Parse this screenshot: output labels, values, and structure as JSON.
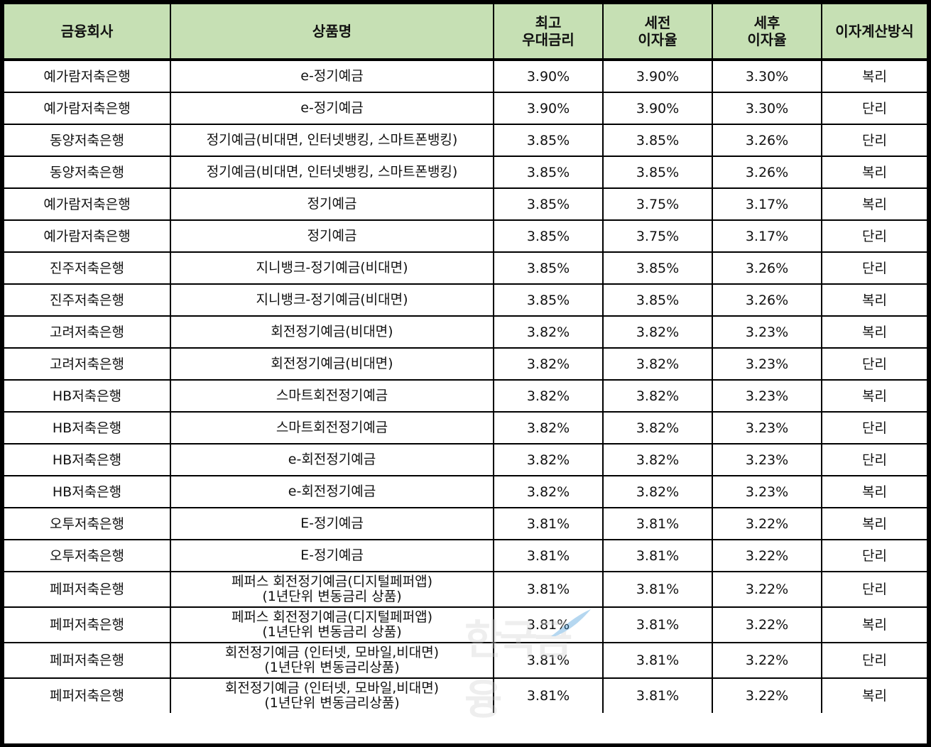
{
  "table": {
    "headers": [
      {
        "lines": [
          "금융회사"
        ]
      },
      {
        "lines": [
          "상품명"
        ]
      },
      {
        "lines": [
          "최고",
          "우대금리"
        ]
      },
      {
        "lines": [
          "세전",
          "이자율"
        ]
      },
      {
        "lines": [
          "세후",
          "이자율"
        ]
      },
      {
        "lines": [
          "이자계산방식"
        ]
      }
    ],
    "rows": [
      {
        "company": "예가람저축은행",
        "product": [
          "e-정기예금"
        ],
        "max_preferential_rate": "3.90%",
        "pre_tax_rate": "3.90%",
        "after_tax_rate": "3.30%",
        "interest_method": "복리"
      },
      {
        "company": "예가람저축은행",
        "product": [
          "e-정기예금"
        ],
        "max_preferential_rate": "3.90%",
        "pre_tax_rate": "3.90%",
        "after_tax_rate": "3.30%",
        "interest_method": "단리"
      },
      {
        "company": "동양저축은행",
        "product": [
          "정기예금(비대면, 인터넷뱅킹, 스마트폰뱅킹)"
        ],
        "max_preferential_rate": "3.85%",
        "pre_tax_rate": "3.85%",
        "after_tax_rate": "3.26%",
        "interest_method": "단리"
      },
      {
        "company": "동양저축은행",
        "product": [
          "정기예금(비대면, 인터넷뱅킹, 스마트폰뱅킹)"
        ],
        "max_preferential_rate": "3.85%",
        "pre_tax_rate": "3.85%",
        "after_tax_rate": "3.26%",
        "interest_method": "복리"
      },
      {
        "company": "예가람저축은행",
        "product": [
          "정기예금"
        ],
        "max_preferential_rate": "3.85%",
        "pre_tax_rate": "3.75%",
        "after_tax_rate": "3.17%",
        "interest_method": "복리"
      },
      {
        "company": "예가람저축은행",
        "product": [
          "정기예금"
        ],
        "max_preferential_rate": "3.85%",
        "pre_tax_rate": "3.75%",
        "after_tax_rate": "3.17%",
        "interest_method": "단리"
      },
      {
        "company": "진주저축은행",
        "product": [
          "지니뱅크-정기예금(비대면)"
        ],
        "max_preferential_rate": "3.85%",
        "pre_tax_rate": "3.85%",
        "after_tax_rate": "3.26%",
        "interest_method": "단리"
      },
      {
        "company": "진주저축은행",
        "product": [
          "지니뱅크-정기예금(비대면)"
        ],
        "max_preferential_rate": "3.85%",
        "pre_tax_rate": "3.85%",
        "after_tax_rate": "3.26%",
        "interest_method": "복리"
      },
      {
        "company": "고려저축은행",
        "product": [
          "회전정기예금(비대면)"
        ],
        "max_preferential_rate": "3.82%",
        "pre_tax_rate": "3.82%",
        "after_tax_rate": "3.23%",
        "interest_method": "복리"
      },
      {
        "company": "고려저축은행",
        "product": [
          "회전정기예금(비대면)"
        ],
        "max_preferential_rate": "3.82%",
        "pre_tax_rate": "3.82%",
        "after_tax_rate": "3.23%",
        "interest_method": "단리"
      },
      {
        "company": "HB저축은행",
        "product": [
          "스마트회전정기예금"
        ],
        "max_preferential_rate": "3.82%",
        "pre_tax_rate": "3.82%",
        "after_tax_rate": "3.23%",
        "interest_method": "복리"
      },
      {
        "company": "HB저축은행",
        "product": [
          "스마트회전정기예금"
        ],
        "max_preferential_rate": "3.82%",
        "pre_tax_rate": "3.82%",
        "after_tax_rate": "3.23%",
        "interest_method": "단리"
      },
      {
        "company": "HB저축은행",
        "product": [
          "e-회전정기예금"
        ],
        "max_preferential_rate": "3.82%",
        "pre_tax_rate": "3.82%",
        "after_tax_rate": "3.23%",
        "interest_method": "단리"
      },
      {
        "company": "HB저축은행",
        "product": [
          "e-회전정기예금"
        ],
        "max_preferential_rate": "3.82%",
        "pre_tax_rate": "3.82%",
        "after_tax_rate": "3.23%",
        "interest_method": "복리"
      },
      {
        "company": "오투저축은행",
        "product": [
          "E-정기예금"
        ],
        "max_preferential_rate": "3.81%",
        "pre_tax_rate": "3.81%",
        "after_tax_rate": "3.22%",
        "interest_method": "복리"
      },
      {
        "company": "오투저축은행",
        "product": [
          "E-정기예금"
        ],
        "max_preferential_rate": "3.81%",
        "pre_tax_rate": "3.81%",
        "after_tax_rate": "3.22%",
        "interest_method": "단리"
      },
      {
        "company": "페퍼저축은행",
        "product": [
          "페퍼스 회전정기예금(디지털페퍼앱)",
          "(1년단위 변동금리 상품)"
        ],
        "max_preferential_rate": "3.81%",
        "pre_tax_rate": "3.81%",
        "after_tax_rate": "3.22%",
        "interest_method": "단리"
      },
      {
        "company": "페퍼저축은행",
        "product": [
          "페퍼스 회전정기예금(디지털페퍼앱)",
          "(1년단위 변동금리 상품)"
        ],
        "max_preferential_rate": "3.81%",
        "pre_tax_rate": "3.81%",
        "after_tax_rate": "3.22%",
        "interest_method": "복리"
      },
      {
        "company": "페퍼저축은행",
        "product": [
          "회전정기예금 (인터넷, 모바일,비대면)",
          "(1년단위 변동금리상품)"
        ],
        "max_preferential_rate": "3.81%",
        "pre_tax_rate": "3.81%",
        "after_tax_rate": "3.22%",
        "interest_method": "단리"
      },
      {
        "company": "페퍼저축은행",
        "product": [
          "회전정기예금 (인터넷, 모바일,비대면)",
          "(1년단위 변동금리상품)"
        ],
        "max_preferential_rate": "3.81%",
        "pre_tax_rate": "3.81%",
        "after_tax_rate": "3.22%",
        "interest_method": "복리"
      }
    ]
  },
  "colors": {
    "header_bg": "#c6e0b4",
    "border": "#000000",
    "cell_bg": "#ffffff"
  }
}
